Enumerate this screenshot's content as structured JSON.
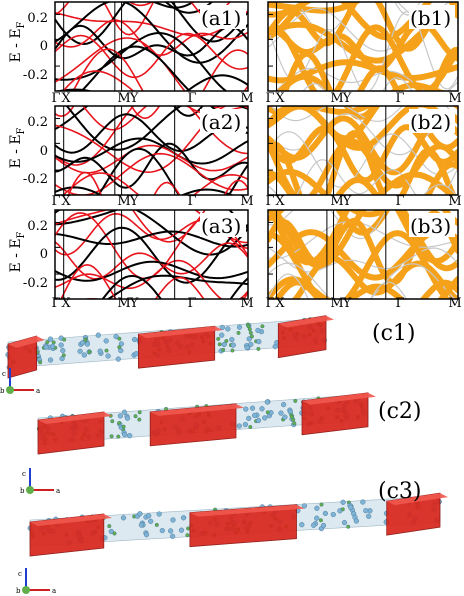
{
  "band_panels": {
    "y_label": "E - E",
    "y_label_sub": "F",
    "y_ticks": [
      "0.2",
      "0",
      "-0.2"
    ],
    "k_labels": [
      "Γ",
      "X",
      "M",
      "Y",
      "Γ",
      "M"
    ],
    "panel_labels": [
      "(a1)",
      "(a2)",
      "(a3)",
      "(b1)",
      "(b2)",
      "(b3)"
    ]
  },
  "structure_panels": {
    "labels": [
      "(c1)",
      "(c2)",
      "(c3)"
    ],
    "axis_labels": [
      "c",
      "b",
      "a"
    ]
  },
  "colors": {
    "band_black": "#000000",
    "band_red": "#e8141c",
    "band_orange": "#f5a11a",
    "band_gray": "#c8c8c8",
    "isosurface_red": "#d9261c",
    "atom_blue": "#7fb3d5",
    "atom_green": "#5fae4a"
  }
}
